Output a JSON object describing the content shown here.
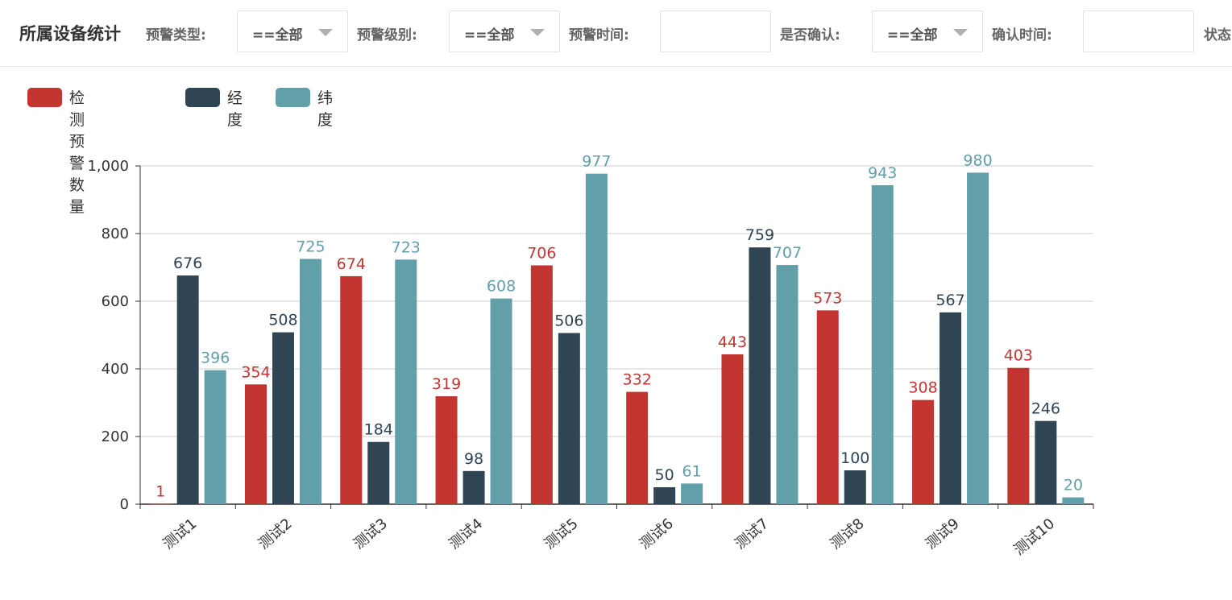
{
  "header": {
    "title": "所属设备统计",
    "filters": [
      {
        "label": "预警类型:",
        "value": "==全部",
        "type": "select"
      },
      {
        "label": "预警级别:",
        "value": "==全部",
        "type": "select"
      },
      {
        "label": "预警时间:",
        "value": "",
        "type": "date"
      },
      {
        "label": "是否确认:",
        "value": "==全部",
        "type": "select"
      },
      {
        "label": "确认时间:",
        "value": "",
        "type": "date"
      },
      {
        "label": "状态",
        "value": "",
        "type": "select"
      }
    ]
  },
  "colors": {
    "series1": "#c23531",
    "series2": "#2f4554",
    "series3": "#61a0a8"
  },
  "chart_data": {
    "type": "bar",
    "categories": [
      "测试1",
      "测试2",
      "测试3",
      "测试4",
      "测试5",
      "测试6",
      "测试7",
      "测试8",
      "测试9",
      "测试10"
    ],
    "series": [
      {
        "name": "检测预警数量",
        "values": [
          1,
          354,
          674,
          319,
          706,
          332,
          443,
          573,
          308,
          403
        ]
      },
      {
        "name": "经度",
        "values": [
          676,
          508,
          184,
          98,
          506,
          50,
          759,
          100,
          567,
          246
        ]
      },
      {
        "name": "纬度",
        "values": [
          396,
          725,
          723,
          608,
          977,
          61,
          707,
          943,
          980,
          20
        ]
      }
    ],
    "y_ticks": [
      "0",
      "200",
      "400",
      "600",
      "800",
      "1,000"
    ],
    "ylim": [
      0,
      1000
    ],
    "grid": true,
    "legend": "top-left",
    "data_labels": true
  }
}
